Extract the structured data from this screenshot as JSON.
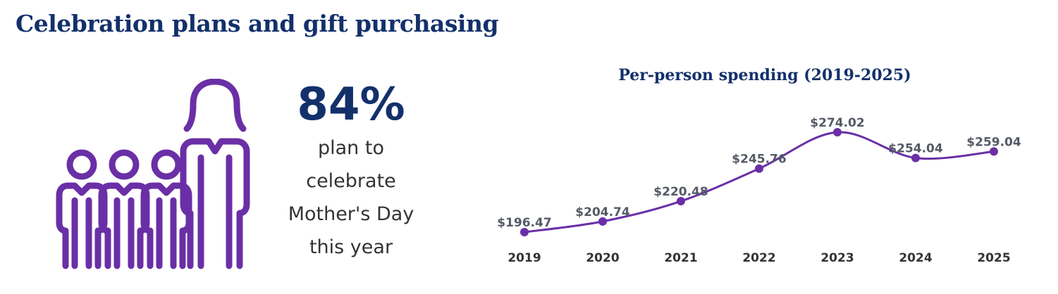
{
  "header": {
    "title": "Celebration plans and gift purchasing"
  },
  "stat": {
    "value": "84%",
    "caption_lines": [
      "plan to",
      "celebrate",
      "Mother's Day",
      "this year"
    ]
  },
  "icon": {
    "name": "family-icon",
    "color": "#6a2fa6"
  },
  "colors": {
    "navy": "#13306b",
    "purple": "#6a2fa6"
  },
  "chart_data": {
    "type": "line",
    "title": "Per-person spending (2019-2025)",
    "categories": [
      "2019",
      "2020",
      "2021",
      "2022",
      "2023",
      "2024",
      "2025"
    ],
    "values": [
      196.47,
      204.74,
      220.48,
      245.76,
      274.02,
      254.04,
      259.04
    ],
    "data_labels": [
      "$196.47",
      "$204.74",
      "$220.48",
      "$245.76",
      "$274.02",
      "$254.04",
      "$259.04"
    ],
    "xlabel": "",
    "ylabel": "",
    "ylim": [
      180,
      290
    ],
    "grid": false,
    "smooth": true
  }
}
